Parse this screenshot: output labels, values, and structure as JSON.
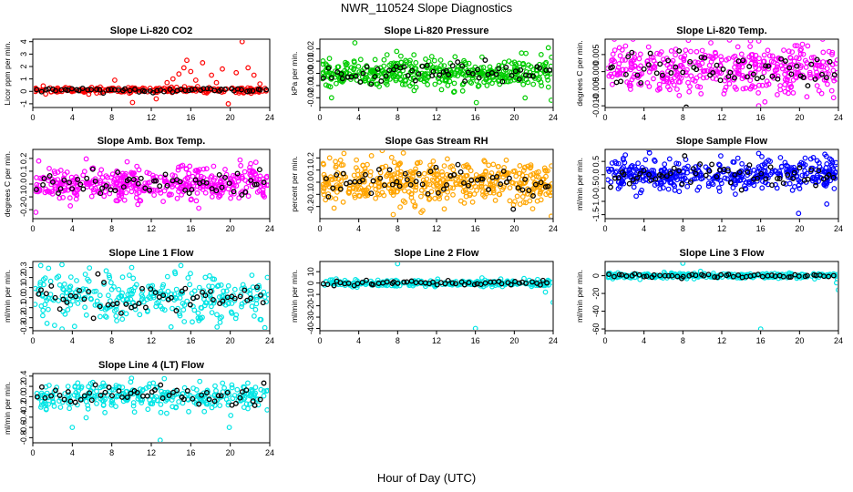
{
  "title": "NWR_110524  Slope Diagnostics",
  "xlabel": "Hour of Day (UTC)",
  "colors": {
    "red": "#ff0000",
    "green": "#00cc00",
    "magenta": "#ff00ff",
    "orange": "#ffa500",
    "blue": "#0000ff",
    "cyan": "#00e5e5",
    "black": "#000000"
  },
  "chart_data": [
    {
      "type": "scatter",
      "title": "Slope Li-820 CO2",
      "ylabel": "Licor ppm per min.",
      "xlim": [
        0,
        24
      ],
      "xticks": [
        0,
        4,
        8,
        12,
        16,
        20,
        24
      ],
      "ylim": [
        -1.3,
        4.2
      ],
      "yticks": [
        -1,
        0,
        1,
        2,
        3,
        4
      ],
      "color": "#ff0000",
      "center": 0.1,
      "spread": 0.12,
      "outliers": [
        [
          14.2,
          1.0
        ],
        [
          14.8,
          1.4
        ],
        [
          15.3,
          1.9
        ],
        [
          15.6,
          2.5
        ],
        [
          16.0,
          1.6
        ],
        [
          16.5,
          0.9
        ],
        [
          17.2,
          2.3
        ],
        [
          18.1,
          1.3
        ],
        [
          18.6,
          0.7
        ],
        [
          19.2,
          1.8
        ],
        [
          20.6,
          1.5
        ],
        [
          21.2,
          4.0
        ],
        [
          21.8,
          1.9
        ],
        [
          22.4,
          1.3
        ],
        [
          23.0,
          0.6
        ],
        [
          13.6,
          0.7
        ],
        [
          10.1,
          -0.9
        ],
        [
          19.8,
          -1.0
        ],
        [
          12.5,
          -0.6
        ],
        [
          8.3,
          0.9
        ]
      ],
      "series": [
        {
          "name": "",
          "n": 230
        },
        {
          "name": "",
          "n": 60
        }
      ]
    },
    {
      "type": "scatter",
      "title": "Slope Li-820 Pressure",
      "ylabel": "kPa per min.",
      "xlim": [
        0,
        24
      ],
      "xticks": [
        0,
        4,
        8,
        12,
        16,
        20,
        24
      ],
      "ylim": [
        -0.028,
        0.028
      ],
      "yticks": [
        -0.02,
        -0.01,
        0.0,
        0.01,
        0.02
      ],
      "color": "#00cc00",
      "center": 0.0,
      "spread": 0.006,
      "outliers": [
        [
          1.2,
          -0.02
        ],
        [
          3.6,
          0.025
        ],
        [
          7.9,
          0.018
        ],
        [
          16.1,
          -0.024
        ],
        [
          23.5,
          0.021
        ],
        [
          23.8,
          -0.022
        ]
      ],
      "series": [
        {
          "name": "",
          "n": 420
        },
        {
          "name": "",
          "n": 60
        }
      ]
    },
    {
      "type": "scatter",
      "title": "Slope Li-820 Temp.",
      "ylabel": "degrees C per min.",
      "xlim": [
        0,
        24
      ],
      "xticks": [
        0,
        4,
        8,
        12,
        16,
        20,
        24
      ],
      "ylim": [
        -0.0105,
        0.0095
      ],
      "yticks": [
        -0.01,
        -0.005,
        0.0,
        0.005
      ],
      "color": "#ff00ff",
      "center": 0.0005,
      "spread": 0.0035,
      "outliers": [
        [
          15.8,
          -0.01
        ],
        [
          2.1,
          0.0075
        ],
        [
          20.3,
          0.008
        ]
      ],
      "series": [
        {
          "name": "",
          "n": 400
        },
        {
          "name": "",
          "n": 60
        }
      ]
    },
    {
      "type": "scatter",
      "title": "Slope Amb. Box Temp.",
      "ylabel": "degrees C per min.",
      "xlim": [
        0,
        24
      ],
      "xticks": [
        0,
        4,
        8,
        12,
        16,
        20,
        24
      ],
      "ylim": [
        -0.27,
        0.27
      ],
      "yticks": [
        -0.2,
        -0.1,
        0.0,
        0.1,
        0.2
      ],
      "color": "#ff00ff",
      "center": 0.0,
      "spread": 0.06,
      "outliers": [
        [
          0.3,
          -0.22
        ],
        [
          0.6,
          0.18
        ],
        [
          22.6,
          0.17
        ],
        [
          3.8,
          -0.17
        ]
      ],
      "series": [
        {
          "name": "",
          "n": 420
        },
        {
          "name": "",
          "n": 60
        }
      ]
    },
    {
      "type": "scatter",
      "title": "Slope Gas Stream RH",
      "ylabel": "percent per min.",
      "xlim": [
        0,
        24
      ],
      "xticks": [
        0,
        4,
        8,
        12,
        16,
        20,
        24
      ],
      "ylim": [
        -0.3,
        0.27
      ],
      "yticks": [
        -0.2,
        -0.1,
        0.0,
        0.1,
        0.2
      ],
      "color": "#ffa500",
      "center": 0.0,
      "spread": 0.09,
      "outliers": [
        [
          23.8,
          -0.28
        ],
        [
          1.0,
          0.2
        ],
        [
          12.8,
          -0.22
        ]
      ],
      "series": [
        {
          "name": "",
          "n": 480
        },
        {
          "name": "",
          "n": 60
        }
      ]
    },
    {
      "type": "scatter",
      "title": "Slope Sample Flow",
      "ylabel": "ml/min per min.",
      "xlim": [
        0,
        24
      ],
      "xticks": [
        0,
        4,
        8,
        12,
        16,
        20,
        24
      ],
      "ylim": [
        -1.65,
        0.95
      ],
      "yticks": [
        -1.5,
        -1.0,
        -0.5,
        0.0,
        0.5
      ],
      "color": "#0000ff",
      "center": 0.0,
      "spread": 0.28,
      "outliers": [
        [
          15.8,
          0.8
        ],
        [
          19.9,
          -1.45
        ],
        [
          22.8,
          -1.1
        ]
      ],
      "series": [
        {
          "name": "",
          "n": 420
        },
        {
          "name": "",
          "n": 60
        }
      ]
    },
    {
      "type": "scatter",
      "title": "Slope Line 1 Flow",
      "ylabel": "ml/min per min.",
      "xlim": [
        0,
        24
      ],
      "xticks": [
        0,
        4,
        8,
        12,
        16,
        20,
        24
      ],
      "ylim": [
        -0.33,
        0.36
      ],
      "yticks": [
        -0.3,
        -0.2,
        -0.1,
        0.0,
        0.1,
        0.2,
        0.3
      ],
      "color": "#00e5e5",
      "center": 0.0,
      "spread": 0.12,
      "outliers": [
        [
          0.8,
          0.32
        ],
        [
          15.0,
          0.32
        ],
        [
          23.5,
          -0.3
        ]
      ],
      "series": [
        {
          "name": "",
          "n": 300
        },
        {
          "name": "",
          "n": 55
        }
      ]
    },
    {
      "type": "scatter",
      "title": "Slope Line 2 Flow",
      "ylabel": "ml/min per min.",
      "xlim": [
        0,
        24
      ],
      "xticks": [
        0,
        4,
        8,
        12,
        16,
        20,
        24
      ],
      "ylim": [
        -42,
        19
      ],
      "yticks": [
        -40,
        -30,
        -20,
        -10,
        0,
        10
      ],
      "color": "#00e5e5",
      "center": 0.0,
      "spread": 1.5,
      "outliers": [
        [
          8.0,
          17
        ],
        [
          16.0,
          -40
        ],
        [
          24.0,
          -17
        ],
        [
          23.2,
          -8
        ],
        [
          21.0,
          4
        ]
      ],
      "series": [
        {
          "name": "",
          "n": 260
        },
        {
          "name": "",
          "n": 55
        }
      ]
    },
    {
      "type": "scatter",
      "title": "Slope Line 3 Flow",
      "ylabel": "ml/min per min.",
      "xlim": [
        0,
        24
      ],
      "xticks": [
        0,
        4,
        8,
        12,
        16,
        20,
        24
      ],
      "ylim": [
        -62,
        16
      ],
      "yticks": [
        -60,
        -40,
        -20,
        0
      ],
      "color": "#00e5e5",
      "center": 0.0,
      "spread": 1.5,
      "outliers": [
        [
          8.0,
          14
        ],
        [
          16.0,
          -60
        ],
        [
          24.0,
          -16
        ],
        [
          23.8,
          -8
        ]
      ],
      "series": [
        {
          "name": "",
          "n": 260
        },
        {
          "name": "",
          "n": 55
        }
      ]
    },
    {
      "type": "scatter",
      "title": "Slope Line 4 (LT) Flow",
      "ylabel": "ml/min per min.",
      "xlim": [
        0,
        24
      ],
      "xticks": [
        0,
        4,
        8,
        12,
        16,
        20,
        24
      ],
      "ylim": [
        -0.9,
        0.45
      ],
      "yticks": [
        -0.8,
        -0.6,
        -0.4,
        -0.2,
        0.0,
        0.2,
        0.4
      ],
      "color": "#00e5e5",
      "center": 0.0,
      "spread": 0.13,
      "outliers": [
        [
          4.0,
          -0.6
        ],
        [
          12.9,
          -0.85
        ],
        [
          19.9,
          -0.6
        ],
        [
          10.0,
          0.36
        ]
      ],
      "series": [
        {
          "name": "",
          "n": 300
        },
        {
          "name": "",
          "n": 55
        }
      ]
    }
  ]
}
